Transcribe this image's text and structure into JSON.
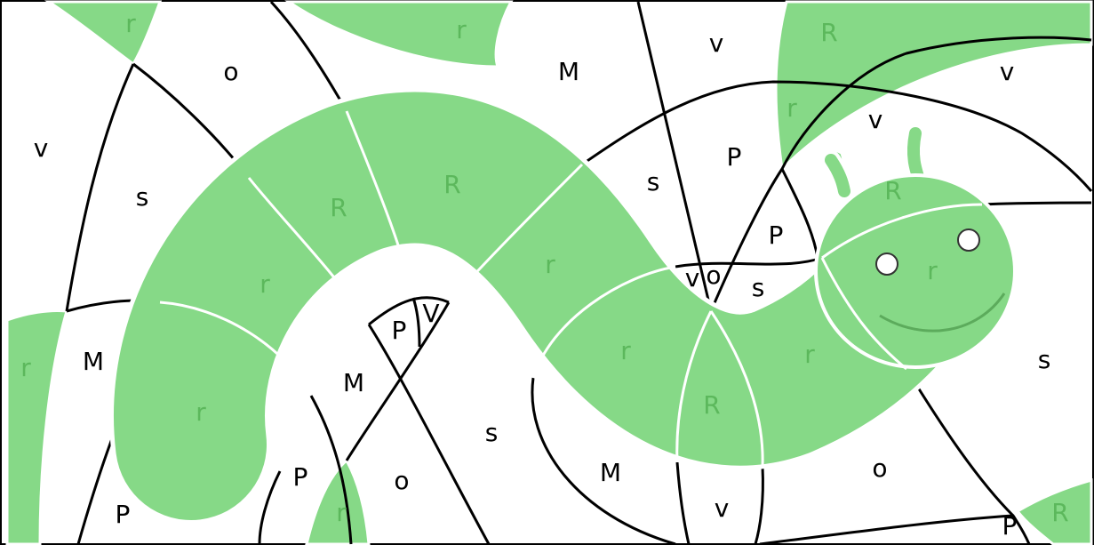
{
  "puzzle": {
    "labels": [
      "r",
      "r",
      "o",
      "M",
      "v",
      "R",
      "v",
      "r",
      "v",
      "v",
      "s",
      "R",
      "R",
      "P",
      "s",
      "R",
      "P",
      "r",
      "r",
      "v",
      "o",
      "s",
      "r",
      "P",
      "V",
      "r",
      "M",
      "M",
      "r",
      "r",
      "s",
      "r",
      "R",
      "s",
      "o",
      "P",
      "o",
      "M",
      "v",
      "P",
      "r",
      "R",
      "P"
    ]
  }
}
